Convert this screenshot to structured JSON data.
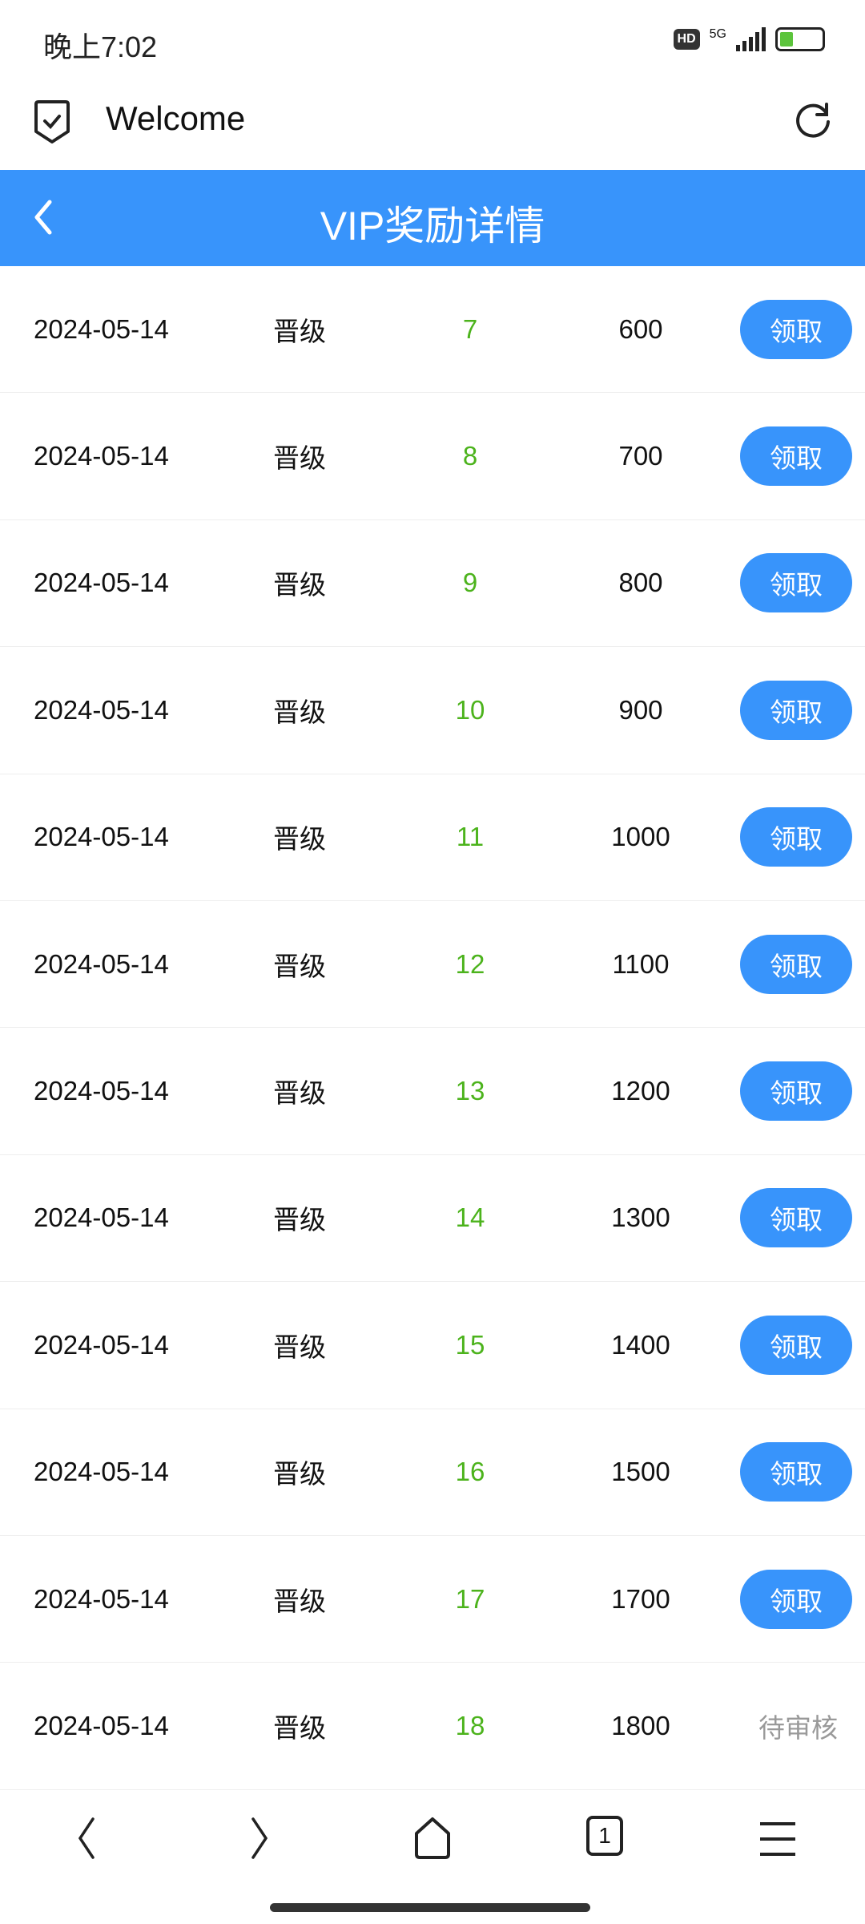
{
  "status_bar": {
    "time": "晚上7:02",
    "hd": "HD",
    "network": "5G",
    "battery_fill": 0.35,
    "battery_color": "#5cc43c"
  },
  "app_bar": {
    "title": "Welcome",
    "left_icon": "shield-check-icon",
    "right_icon": "reload-icon"
  },
  "header": {
    "title": "VIP奖励详情",
    "back_icon": "chevron-left-icon",
    "color": "#3894fb"
  },
  "rows": [
    {
      "date": "2024-05-14",
      "type": "晋级",
      "level": "7",
      "amount": "600",
      "action": "领取"
    },
    {
      "date": "2024-05-14",
      "type": "晋级",
      "level": "8",
      "amount": "700",
      "action": "领取"
    },
    {
      "date": "2024-05-14",
      "type": "晋级",
      "level": "9",
      "amount": "800",
      "action": "领取"
    },
    {
      "date": "2024-05-14",
      "type": "晋级",
      "level": "10",
      "amount": "900",
      "action": "领取"
    },
    {
      "date": "2024-05-14",
      "type": "晋级",
      "level": "11",
      "amount": "1000",
      "action": "领取"
    },
    {
      "date": "2024-05-14",
      "type": "晋级",
      "level": "12",
      "amount": "1100",
      "action": "领取"
    },
    {
      "date": "2024-05-14",
      "type": "晋级",
      "level": "13",
      "amount": "1200",
      "action": "领取"
    },
    {
      "date": "2024-05-14",
      "type": "晋级",
      "level": "14",
      "amount": "1300",
      "action": "领取"
    },
    {
      "date": "2024-05-14",
      "type": "晋级",
      "level": "15",
      "amount": "1400",
      "action": "领取"
    },
    {
      "date": "2024-05-14",
      "type": "晋级",
      "level": "16",
      "amount": "1500",
      "action": "领取"
    },
    {
      "date": "2024-05-14",
      "type": "晋级",
      "level": "17",
      "amount": "1700",
      "action": "领取"
    },
    {
      "date": "2024-05-14",
      "type": "晋级",
      "level": "18",
      "amount": "1800",
      "status": "待审核"
    }
  ],
  "bottom_nav": {
    "tab_count": "1",
    "icons": [
      "back-icon",
      "forward-icon",
      "home-icon",
      "tabs-icon",
      "menu-icon"
    ]
  }
}
